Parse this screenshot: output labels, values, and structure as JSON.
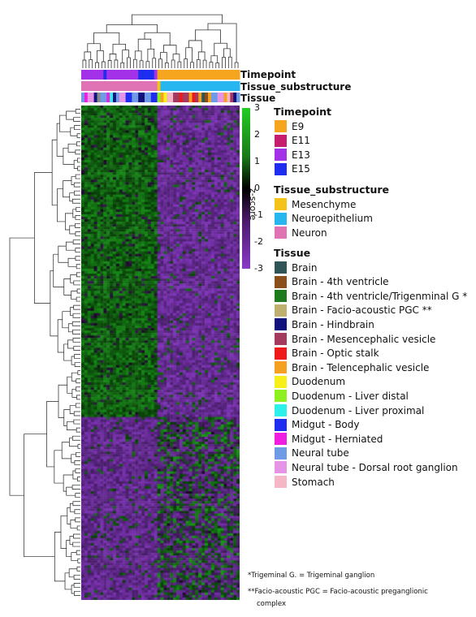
{
  "chart_data": {
    "type": "heatmap",
    "colorbar": {
      "title": "z-score",
      "ticks": [
        "3",
        "2",
        "1",
        "0",
        "-1",
        "-2",
        "-3"
      ],
      "range": [
        -3,
        3
      ],
      "colors": {
        "high": "#22cc22",
        "mid": "#000000",
        "low": "#8a3ac8"
      }
    },
    "annotation_tracks": [
      "Timepoint",
      "Tissue_substructure",
      "Tissue"
    ],
    "timepoint_track": [
      "E13",
      "E13",
      "E13",
      "E13",
      "E13",
      "E13",
      "E13",
      "E15",
      "E13",
      "E13",
      "E13",
      "E13",
      "E13",
      "E13",
      "E13",
      "E13",
      "E13",
      "E13",
      "E15",
      "E15",
      "E15",
      "E15",
      "E15",
      "E13",
      "E9",
      "E9",
      "E9",
      "E9",
      "E9",
      "E9",
      "E9",
      "E9",
      "E9",
      "E9",
      "E9",
      "E9",
      "E9",
      "E9",
      "E9",
      "E9",
      "E9",
      "E9",
      "E9",
      "E9",
      "E9",
      "E9",
      "E9",
      "E9",
      "E9",
      "E9"
    ],
    "substructure_track": [
      "Neuron",
      "Neuron",
      "Neuron",
      "Neuron",
      "Neuron",
      "Neuron",
      "Neuron",
      "Neuron",
      "Neuron",
      "Neuron",
      "Neuron",
      "Neuron",
      "Neuron",
      "Neuron",
      "Neuron",
      "Neuron",
      "Neuron",
      "Neuron",
      "Neuron",
      "Neuron",
      "Neuron",
      "Neuron",
      "Neuron",
      "Neuron",
      "Mesenchyme",
      "Neuroepithelium",
      "Neuroepithelium",
      "Neuroepithelium",
      "Neuroepithelium",
      "Neuroepithelium",
      "Neuroepithelium",
      "Neuroepithelium",
      "Neuroepithelium",
      "Neuroepithelium",
      "Neuroepithelium",
      "Neuroepithelium",
      "Neuroepithelium",
      "Neuroepithelium",
      "Neuroepithelium",
      "Neuroepithelium",
      "Neuroepithelium",
      "Neuroepithelium",
      "Neuroepithelium",
      "Neuroepithelium",
      "Neuroepithelium",
      "Neuroepithelium",
      "Neuroepithelium",
      "Neuroepithelium",
      "Neuroepithelium",
      "Neuroepithelium"
    ],
    "tissue_track": [
      "Neural tube",
      "Midgut - Herniated",
      "Neural tube - Dorsal root ganglion",
      "Neural tube - Dorsal root ganglion",
      "Brain - Hindbrain",
      "Brain - Facio-acoustic PGC",
      "Neural tube",
      "Neural tube",
      "Midgut - Herniated",
      "Duodenum - Liver proximal",
      "Brain - Hindbrain",
      "Neural tube",
      "Neural tube - Dorsal root ganglion",
      "Neural tube - Dorsal root ganglion",
      "Midgut - Body",
      "Midgut - Body",
      "Neural tube",
      "Neural tube",
      "Brain - Hindbrain",
      "Brain - Hindbrain",
      "Neural tube",
      "Neural tube",
      "Midgut - Body",
      "Midgut - Body",
      "Duodenum - Liver distal",
      "Brain - Telencephalic vesicle",
      "Duodenum",
      "Stomach",
      "Stomach",
      "Brain - Mesencephalic vesicle",
      "Brain - Mesencephalic vesicle",
      "Brain - Optic stalk",
      "Brain - Mesencephalic vesicle",
      "Brain - Mesencephalic vesicle",
      "Brain - Telencephalic vesicle",
      "Brain - Optic stalk",
      "Brain - Mesencephalic vesicle",
      "Brain - Telencephalic vesicle",
      "Brain",
      "Brain - 4th ventricle",
      "Brain - Telencephalic vesicle",
      "Neural tube",
      "Neural tube",
      "Neural tube - Dorsal root ganglion",
      "Neural tube - Dorsal root ganglion",
      "Brain - Telencephalic vesicle",
      "Stomach",
      "Brain - Mesencephalic vesicle",
      "Brain - Hindbrain",
      "Neural tube"
    ],
    "legends": [
      {
        "title": "Timepoint",
        "entries": [
          {
            "label": "E9",
            "color": "#f5a51e"
          },
          {
            "label": "E11",
            "color": "#c71d6f"
          },
          {
            "label": "E13",
            "color": "#a231e8"
          },
          {
            "label": "E15",
            "color": "#1e2df0"
          }
        ]
      },
      {
        "title": "Tissue_substructure",
        "entries": [
          {
            "label": "Mesenchyme",
            "color": "#f5c219"
          },
          {
            "label": "Neuroepithelium",
            "color": "#27b6f0"
          },
          {
            "label": "Neuron",
            "color": "#e073b4"
          }
        ]
      },
      {
        "title": "Tissue",
        "entries": [
          {
            "label": "Brain",
            "color": "#2f5556"
          },
          {
            "label": "Brain - 4th ventricle",
            "color": "#8b5019"
          },
          {
            "label": "Brain - 4th ventricle/Trigenminal G *",
            "color": "#1d7a1d"
          },
          {
            "label": "Brain - Facio-acoustic PGC **",
            "color": "#bfb070"
          },
          {
            "label": "Brain - Hindbrain",
            "color": "#12127f"
          },
          {
            "label": "Brain - Mesencephalic vesicle",
            "color": "#a53a5f"
          },
          {
            "label": "Brain - Optic stalk",
            "color": "#f01919"
          },
          {
            "label": "Brain - Telencephalic vesicle",
            "color": "#f5a01e"
          },
          {
            "label": "Duodenum",
            "color": "#f7ee1a"
          },
          {
            "label": "Duodenum - Liver distal",
            "color": "#8ef01e"
          },
          {
            "label": "Duodenum - Liver proximal",
            "color": "#2ef0ea"
          },
          {
            "label": "Midgut - Body",
            "color": "#1e2df0"
          },
          {
            "label": "Midgut - Herniated",
            "color": "#f01ee0"
          },
          {
            "label": "Neural tube",
            "color": "#6e9ae6"
          },
          {
            "label": "Neural tube - Dorsal root ganglion",
            "color": "#e694e6"
          },
          {
            "label": "Stomach",
            "color": "#f5b7c6"
          }
        ]
      }
    ]
  },
  "footnotes": {
    "note1": "*Trigeminal G. = Trigeminal ganglion",
    "note2_line1": "**Facio-acoustic PGC = Facio-acoustic preganglionic",
    "note2_line2": "complex"
  }
}
